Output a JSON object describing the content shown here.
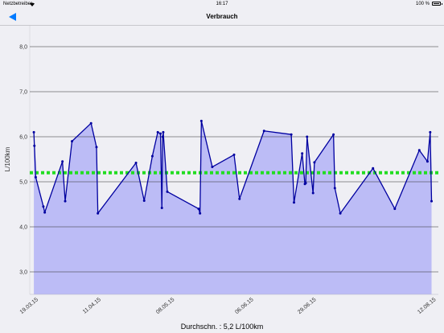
{
  "status_bar": {
    "carrier": "Netzbetreiber",
    "time": "16:17",
    "battery": "100 %"
  },
  "nav": {
    "title": "Verbrauch",
    "back_icon": "back-arrow-icon"
  },
  "summary": {
    "text": "Durchschn. : 5,2 L/100km"
  },
  "colors": {
    "line": "#0000a0",
    "fill": "#bcbcf6",
    "average": "#22dd22",
    "accent": "#007aff",
    "grid": "#2b2b2b",
    "background": "#efeff4"
  },
  "chart_data": {
    "type": "area",
    "ylabel": "L/100km",
    "ylim": [
      2.5,
      8.5
    ],
    "y_ticks": [
      "3,0",
      "4,0",
      "5,0",
      "6,0",
      "7,0",
      "8,0"
    ],
    "x_ticks": [
      "19.03.15",
      "11.04.15",
      "08.05.15",
      "06.06.15",
      "29.06.15",
      "12.08.15"
    ],
    "x_tick_values": [
      0,
      23,
      50,
      79,
      102,
      146
    ],
    "xlim": [
      -2,
      148
    ],
    "average": 5.2,
    "grid": true,
    "series": [
      {
        "x": [
          -0.5,
          -0.3,
          0.2,
          3,
          3.5,
          10,
          11,
          13.5,
          20.5,
          22.5,
          23,
          37,
          40,
          43,
          45,
          46,
          46.5,
          46.8,
          47,
          48.5,
          60,
          60.5,
          61,
          65,
          73,
          75,
          84,
          94,
          95,
          98,
          99,
          99.3,
          99.8,
          102,
          102.5,
          109.5,
          110,
          112,
          124,
          132,
          141,
          144,
          145,
          145.5
        ],
        "y": [
          6.1,
          5.8,
          5.1,
          4.45,
          4.32,
          5.45,
          4.57,
          5.9,
          6.3,
          5.77,
          4.3,
          5.42,
          4.58,
          5.57,
          6.1,
          6.07,
          4.42,
          6.0,
          6.1,
          4.78,
          4.4,
          4.3,
          6.35,
          5.33,
          5.6,
          4.62,
          6.13,
          6.05,
          4.54,
          5.63,
          4.95,
          4.97,
          6.0,
          4.75,
          5.43,
          6.05,
          4.86,
          4.3,
          5.3,
          4.4,
          5.7,
          5.45,
          6.1,
          4.57
        ]
      }
    ]
  }
}
